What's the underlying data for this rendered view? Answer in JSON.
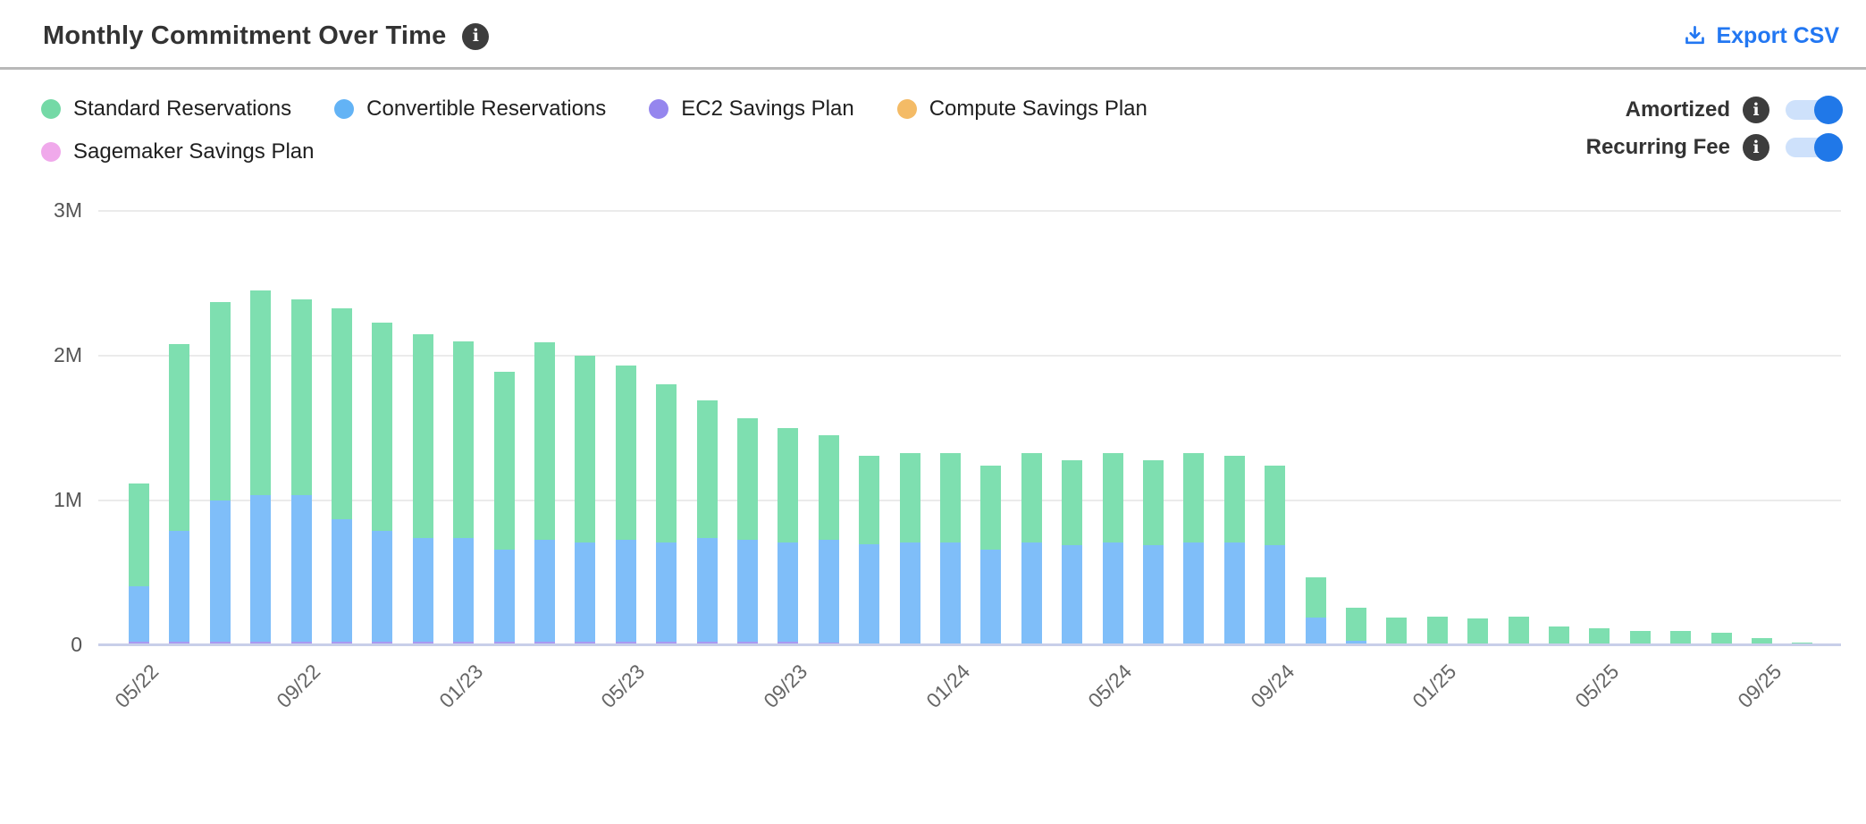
{
  "header": {
    "title": "Monthly Commitment Over Time",
    "title_info_icon": "i",
    "export_label": "Export CSV"
  },
  "controls": {
    "legend": [
      {
        "label": "Standard Reservations",
        "color": "#74d9a6"
      },
      {
        "label": "Convertible Reservations",
        "color": "#63b3f5"
      },
      {
        "label": "EC2 Savings Plan",
        "color": "#9586ee"
      },
      {
        "label": "Compute Savings Plan",
        "color": "#f4bb66"
      },
      {
        "label": "Sagemaker Savings Plan",
        "color": "#f0a9eb"
      }
    ],
    "toggles": [
      {
        "label": "Amortized",
        "info_icon": "i",
        "state": "on"
      },
      {
        "label": "Recurring Fee",
        "info_icon": "i",
        "state": "on"
      }
    ],
    "toggle_on_color": "#2078e8",
    "toggle_track_color": "#cee1fb"
  },
  "chart_data": {
    "type": "bar",
    "stacked": true,
    "title": "Monthly Commitment Over Time",
    "xlabel": "",
    "ylabel": "",
    "unit": "millions",
    "ylim": [
      0,
      3
    ],
    "y_ticks": [
      "0",
      "1M",
      "2M",
      "3M"
    ],
    "grid": "horizontal",
    "legend_position": "top-left",
    "x_tick_labels_shown": [
      "05/22",
      "09/22",
      "01/23",
      "05/23",
      "09/23",
      "01/24",
      "05/24",
      "09/24",
      "01/25",
      "05/25",
      "09/25"
    ],
    "x": [
      "05/22",
      "06/22",
      "07/22",
      "08/22",
      "09/22",
      "10/22",
      "11/22",
      "12/22",
      "01/23",
      "02/23",
      "03/23",
      "04/23",
      "05/23",
      "06/23",
      "07/23",
      "08/23",
      "09/23",
      "10/23",
      "11/23",
      "12/23",
      "01/24",
      "02/24",
      "03/24",
      "04/24",
      "05/24",
      "06/24",
      "07/24",
      "08/24",
      "09/24",
      "10/24",
      "11/24",
      "12/24",
      "01/25",
      "02/25",
      "03/25",
      "04/25",
      "05/25",
      "06/25",
      "07/25",
      "08/25",
      "09/25",
      "10/25"
    ],
    "stack_order_bottom_to_top": [
      "EC2 Savings Plan",
      "Convertible Reservations",
      "Standard Reservations",
      "Compute Savings Plan",
      "Sagemaker Savings Plan"
    ],
    "series": [
      {
        "name": "EC2 Savings Plan",
        "color": "#a89af2",
        "values": [
          0.025,
          0.025,
          0.025,
          0.025,
          0.025,
          0.025,
          0.025,
          0.025,
          0.025,
          0.025,
          0.025,
          0.025,
          0.025,
          0.025,
          0.025,
          0.025,
          0.025,
          0.02,
          0.015,
          0,
          0,
          0,
          0,
          0,
          0,
          0,
          0,
          0,
          0,
          0,
          0,
          0,
          0,
          0,
          0,
          0,
          0,
          0,
          0,
          0,
          0,
          0
        ]
      },
      {
        "name": "Convertible Reservations",
        "color": "#7fbef9",
        "values": [
          0.385,
          0.765,
          0.975,
          1.015,
          1.015,
          0.845,
          0.765,
          0.715,
          0.715,
          0.635,
          0.705,
          0.685,
          0.705,
          0.685,
          0.715,
          0.705,
          0.685,
          0.71,
          0.685,
          0.71,
          0.71,
          0.66,
          0.71,
          0.69,
          0.71,
          0.69,
          0.71,
          0.71,
          0.69,
          0.19,
          0.03,
          0,
          0,
          0,
          0,
          0,
          0,
          0,
          0,
          0,
          0,
          0
        ]
      },
      {
        "name": "Standard Reservations",
        "color": "#7edfb0",
        "values": [
          0.71,
          1.29,
          1.37,
          1.41,
          1.35,
          1.46,
          1.44,
          1.41,
          1.36,
          1.23,
          1.36,
          1.29,
          1.2,
          1.09,
          0.95,
          0.84,
          0.79,
          0.72,
          0.61,
          0.62,
          0.62,
          0.58,
          0.62,
          0.59,
          0.62,
          0.59,
          0.62,
          0.6,
          0.55,
          0.28,
          0.23,
          0.19,
          0.2,
          0.185,
          0.2,
          0.13,
          0.12,
          0.1,
          0.1,
          0.085,
          0.05,
          0.02
        ]
      },
      {
        "name": "Compute Savings Plan",
        "color": "#f4bb66",
        "values": [
          0,
          0,
          0,
          0,
          0,
          0,
          0,
          0,
          0,
          0,
          0,
          0,
          0,
          0,
          0,
          0,
          0,
          0,
          0,
          0,
          0,
          0,
          0,
          0,
          0,
          0,
          0,
          0,
          0,
          0,
          0,
          0,
          0,
          0,
          0,
          0,
          0,
          0,
          0,
          0,
          0,
          0
        ]
      },
      {
        "name": "Sagemaker Savings Plan",
        "color": "#f0a9eb",
        "values": [
          0,
          0,
          0,
          0,
          0,
          0,
          0,
          0,
          0,
          0,
          0,
          0,
          0,
          0,
          0,
          0,
          0,
          0,
          0,
          0,
          0,
          0,
          0,
          0,
          0,
          0,
          0,
          0,
          0,
          0,
          0,
          0,
          0,
          0,
          0,
          0,
          0,
          0,
          0,
          0,
          0,
          0
        ]
      }
    ]
  }
}
